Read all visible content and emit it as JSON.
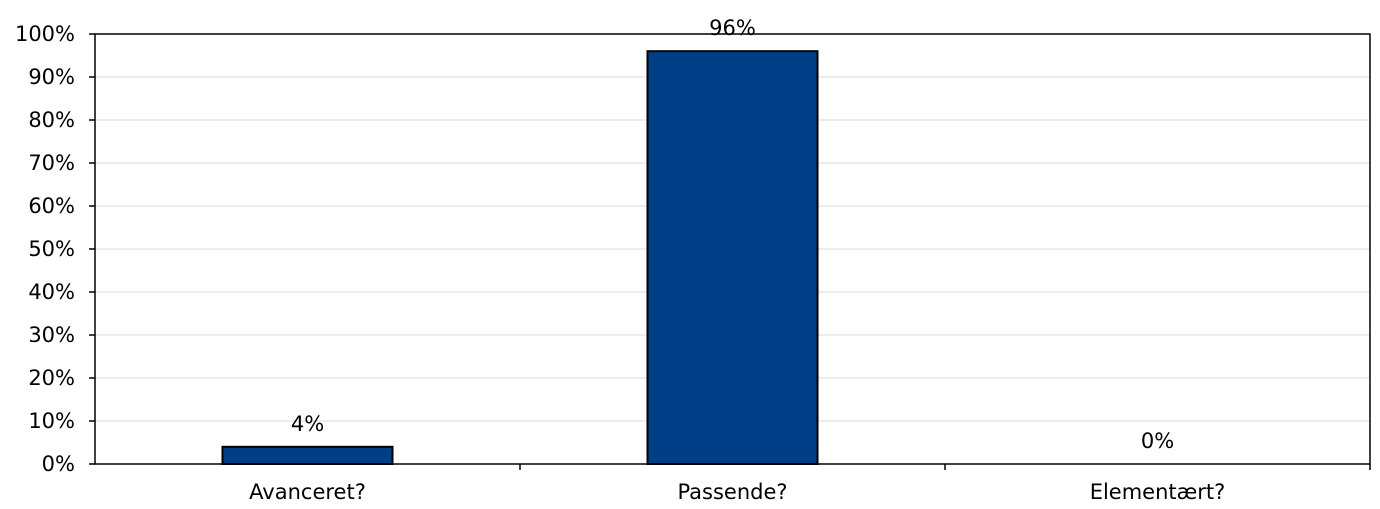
{
  "chart_data": {
    "type": "bar",
    "title": "",
    "xlabel": "",
    "ylabel": "",
    "categories": [
      "Avanceret?",
      "Passende?",
      "Elementært?"
    ],
    "values": [
      4,
      96,
      0
    ],
    "data_labels": [
      "4%",
      "96%",
      "0%"
    ],
    "ylim": [
      0,
      100
    ],
    "yticks": [
      0,
      10,
      20,
      30,
      40,
      50,
      60,
      70,
      80,
      90,
      100
    ],
    "ytick_labels": [
      "0%",
      "10%",
      "20%",
      "30%",
      "40%",
      "50%",
      "60%",
      "70%",
      "80%",
      "90%",
      "100%"
    ],
    "grid": true,
    "legend": "none",
    "colors": {
      "bar": "#003f87",
      "bar_border": "#000000",
      "grid": "#d9d9d9",
      "axis": "#000000"
    }
  }
}
